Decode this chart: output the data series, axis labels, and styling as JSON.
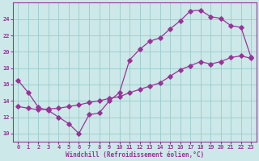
{
  "xlabel": "Windchill (Refroidissement éolien,°C)",
  "bg_color": "#cce8e8",
  "line_color": "#993399",
  "grid_color": "#99cccc",
  "xlim": [
    -0.5,
    23.5
  ],
  "ylim": [
    9.0,
    26.0
  ],
  "xticks": [
    0,
    1,
    2,
    3,
    4,
    5,
    6,
    7,
    8,
    9,
    10,
    11,
    12,
    13,
    14,
    15,
    16,
    17,
    18,
    19,
    20,
    21,
    22,
    23
  ],
  "yticks": [
    10,
    12,
    14,
    16,
    18,
    20,
    22,
    24
  ],
  "line1_x": [
    0,
    1,
    2,
    3,
    4,
    5,
    6,
    7,
    8,
    9,
    10,
    11,
    12,
    13,
    14,
    15,
    16,
    17,
    18,
    19,
    20,
    21,
    22,
    23
  ],
  "line1_y": [
    16.5,
    15.0,
    13.2,
    12.8,
    12.0,
    11.2,
    10.0,
    12.3,
    12.5,
    14.0,
    15.0,
    19.0,
    20.3,
    21.3,
    21.7,
    22.8,
    23.8,
    25.0,
    25.1,
    24.3,
    24.1,
    23.2,
    23.0,
    19.3
  ],
  "line2_x": [
    0,
    1,
    2,
    3,
    4,
    5,
    6,
    7,
    8,
    9,
    10,
    11,
    12,
    13,
    14,
    15,
    16,
    17,
    18,
    19,
    20,
    21,
    22,
    23
  ],
  "line2_y": [
    13.3,
    13.1,
    12.9,
    13.0,
    13.1,
    13.3,
    13.5,
    13.8,
    14.0,
    14.3,
    14.5,
    15.0,
    15.4,
    15.8,
    16.2,
    17.0,
    17.8,
    18.3,
    18.8,
    18.5,
    18.8,
    19.3,
    19.5,
    19.2
  ]
}
